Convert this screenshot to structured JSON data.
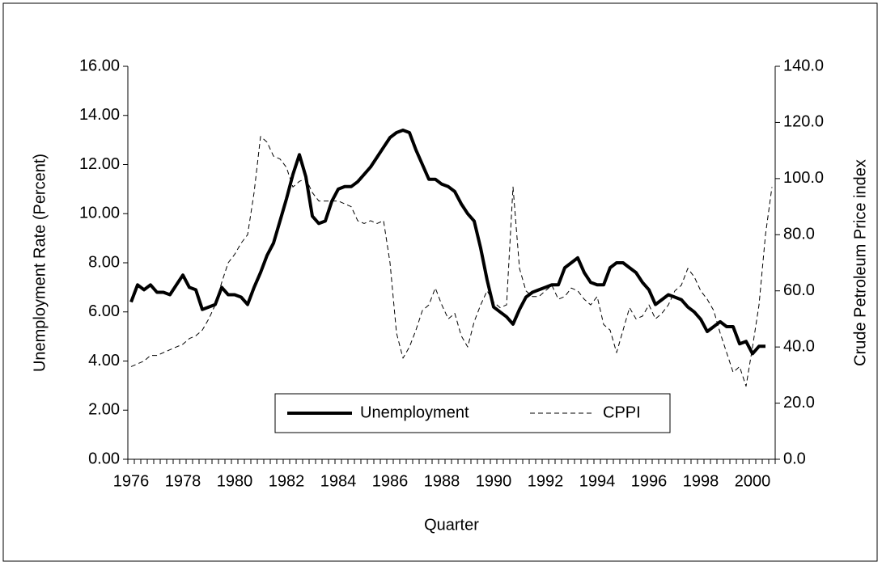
{
  "chart_data": {
    "type": "line",
    "x_label": "Quarter",
    "y_label": "Unemployment Rate (Percent)",
    "y2_label": "Crude Petroleum Price index",
    "categories": [
      "1976",
      null,
      null,
      null,
      null,
      null,
      null,
      null,
      "1978",
      null,
      null,
      null,
      null,
      null,
      null,
      null,
      "1980",
      null,
      null,
      null,
      null,
      null,
      null,
      null,
      "1982",
      null,
      null,
      null,
      null,
      null,
      null,
      null,
      "1984",
      null,
      null,
      null,
      null,
      null,
      null,
      null,
      "1986",
      null,
      null,
      null,
      null,
      null,
      null,
      null,
      "1988",
      null,
      null,
      null,
      null,
      null,
      null,
      null,
      "1990",
      null,
      null,
      null,
      null,
      null,
      null,
      null,
      "1992",
      null,
      null,
      null,
      null,
      null,
      null,
      null,
      "1994",
      null,
      null,
      null,
      null,
      null,
      null,
      null,
      "1996",
      null,
      null,
      null,
      null,
      null,
      null,
      null,
      "1998",
      null,
      null,
      null,
      null,
      null,
      null,
      null,
      "2000",
      null,
      null,
      null
    ],
    "series": [
      {
        "name": "Unemployment",
        "color": "#000000",
        "axis": "y",
        "dash": false,
        "width": 4,
        "values": [
          6.4,
          7.1,
          6.9,
          7.1,
          6.8,
          6.8,
          6.7,
          7.1,
          7.5,
          7.0,
          6.9,
          6.1,
          6.2,
          6.3,
          7.0,
          6.7,
          6.7,
          6.6,
          6.3,
          7.0,
          7.6,
          8.3,
          8.8,
          9.7,
          10.6,
          11.6,
          12.4,
          11.5,
          9.9,
          9.6,
          9.7,
          10.5,
          11.0,
          11.1,
          11.1,
          11.3,
          11.6,
          11.9,
          12.3,
          12.7,
          13.1,
          13.3,
          13.4,
          13.3,
          12.6,
          12.0,
          11.4,
          11.4,
          11.2,
          11.1,
          10.9,
          10.4,
          10.0,
          9.7,
          8.6,
          7.3,
          6.2,
          6.0,
          5.8,
          5.5,
          6.1,
          6.6,
          6.8,
          6.9,
          7.0,
          7.1,
          7.1,
          7.8,
          8.0,
          8.2,
          7.6,
          7.2,
          7.1,
          7.1,
          7.8,
          8.0,
          8.0,
          7.8,
          7.6,
          7.2,
          6.9,
          6.3,
          6.5,
          6.7,
          6.6,
          6.5,
          6.2,
          6.0,
          5.7,
          5.2,
          5.4,
          5.6,
          5.4,
          5.4,
          4.7,
          4.8,
          4.3,
          4.6,
          4.6,
          null
        ]
      },
      {
        "name": "CPPI",
        "color": "#000000",
        "axis": "y2",
        "dash": true,
        "width": 1,
        "values": [
          33,
          34,
          35,
          37,
          37,
          38,
          39,
          40,
          41,
          43,
          44,
          46,
          50,
          55,
          63,
          70,
          73,
          77,
          80,
          95,
          115,
          113,
          108,
          107,
          104,
          97,
          99,
          100,
          95,
          92,
          92,
          92,
          92,
          91,
          90,
          85,
          84,
          85,
          84,
          85,
          70,
          45,
          36,
          40,
          46,
          53,
          55,
          61,
          55,
          50,
          52,
          44,
          40,
          49,
          55,
          60,
          56,
          54,
          55,
          97,
          68,
          60,
          58,
          58,
          60,
          62,
          57,
          58,
          61,
          60,
          57,
          55,
          58,
          48,
          46,
          38,
          46,
          54,
          50,
          51,
          55,
          50,
          52,
          55,
          60,
          62,
          68,
          65,
          60,
          57,
          53,
          45,
          38,
          31,
          33,
          26,
          40,
          55,
          80,
          97
        ]
      }
    ],
    "ylim": [
      0,
      16
    ],
    "yticks": [
      {
        "value": 0,
        "label": "0.00"
      },
      {
        "value": 2,
        "label": "2.00"
      },
      {
        "value": 4,
        "label": "4.00"
      },
      {
        "value": 6,
        "label": "6.00"
      },
      {
        "value": 8,
        "label": "8.00"
      },
      {
        "value": 10,
        "label": "10.00"
      },
      {
        "value": 12,
        "label": "12.00"
      },
      {
        "value": 14,
        "label": "14.00"
      },
      {
        "value": 16,
        "label": "16.00"
      }
    ],
    "y2lim": [
      0,
      140
    ],
    "y2ticks": [
      {
        "value": 0,
        "label": "0.0"
      },
      {
        "value": 20,
        "label": "20.0"
      },
      {
        "value": 40,
        "label": "40.0"
      },
      {
        "value": 60,
        "label": "60.0"
      },
      {
        "value": 80,
        "label": "80.0"
      },
      {
        "value": 100,
        "label": "100.0"
      },
      {
        "value": 120,
        "label": "120.0"
      },
      {
        "value": 140,
        "label": "140.0"
      }
    ],
    "grid": false,
    "legend": "lower center"
  }
}
